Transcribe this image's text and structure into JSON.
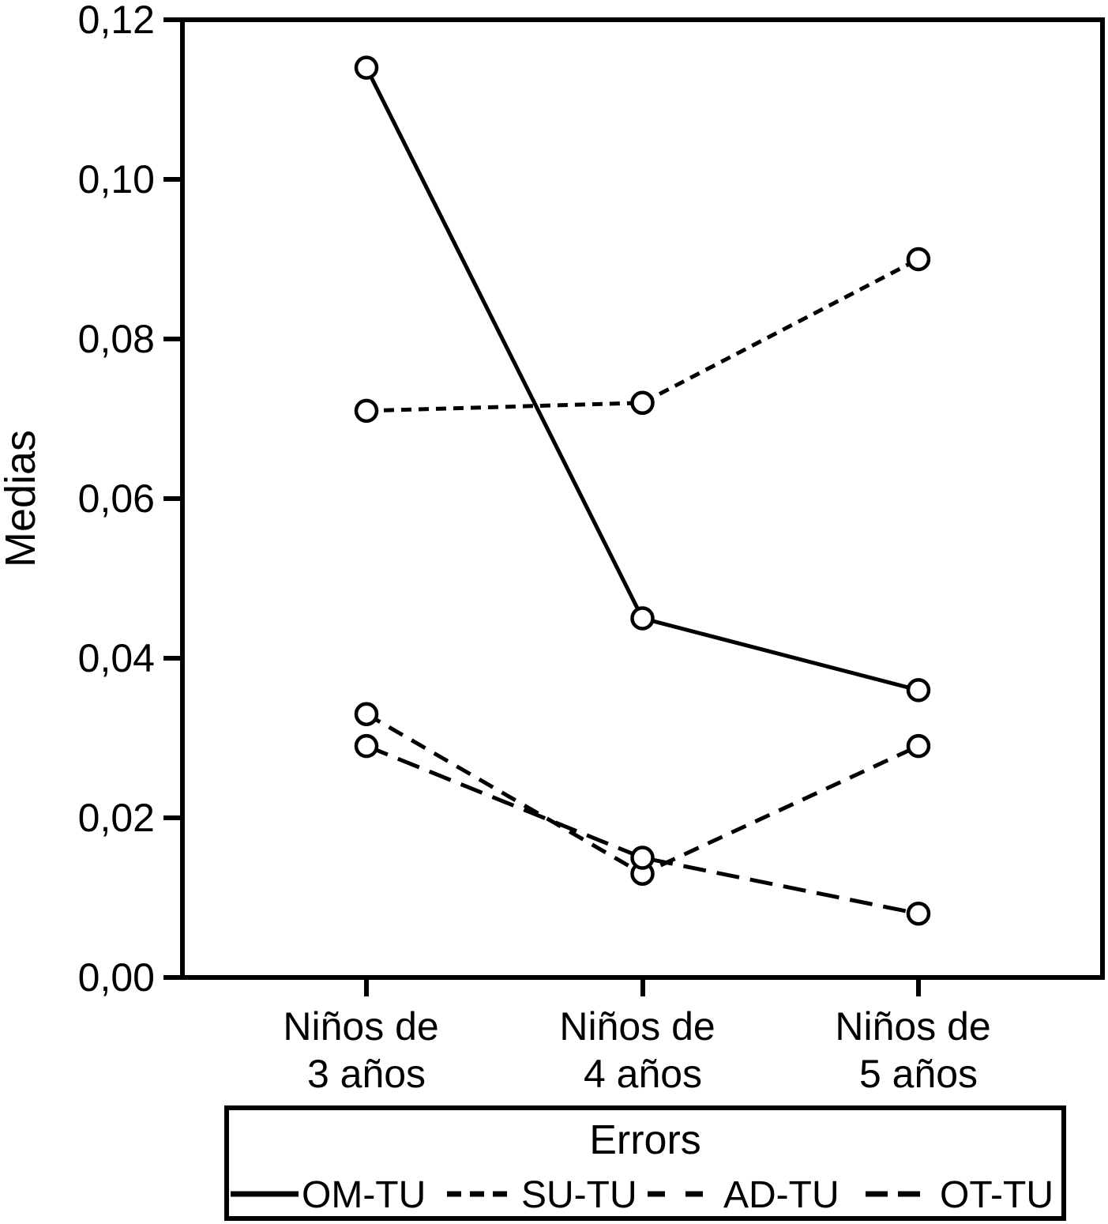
{
  "chart_data": {
    "type": "line",
    "ylabel": "Medias",
    "xlabel": "",
    "ylim": [
      0,
      0.12
    ],
    "ytick_step": 0.02,
    "ytick_labels": [
      "0,00",
      "0,02",
      "0,04",
      "0,06",
      "0,08",
      "0,10",
      "0,12"
    ],
    "grid": false,
    "legend_position": "bottom",
    "legend_title": "Errors",
    "marker": "open-circle",
    "colors": {
      "line": "#000000",
      "background": "#ffffff"
    },
    "categories": [
      {
        "label": "Niños de 3 años",
        "line1": "Niños de",
        "line2": "3 años"
      },
      {
        "label": "Niños de 4 años",
        "line1": "Niños de",
        "line2": "4 años"
      },
      {
        "label": "Niños de 5 años",
        "line1": "Niños de",
        "line2": "5 años"
      }
    ],
    "series": [
      {
        "name": "OM-TU",
        "line_style": "solid",
        "dash": "",
        "legend_dash": "",
        "values": [
          0.114,
          0.045,
          0.036
        ]
      },
      {
        "name": "SU-TU",
        "line_style": "short-dash",
        "dash": "13 9",
        "legend_dash": "18 11",
        "values": [
          0.071,
          0.072,
          0.09
        ]
      },
      {
        "name": "AD-TU",
        "line_style": "medium-dash",
        "dash": "20 13",
        "legend_dash": "22 26",
        "values": [
          0.033,
          0.013,
          0.029
        ]
      },
      {
        "name": "OT-TU",
        "line_style": "long-dash",
        "dash": "29 14",
        "legend_dash": "28 13",
        "values": [
          0.029,
          0.015,
          0.008
        ]
      }
    ]
  }
}
